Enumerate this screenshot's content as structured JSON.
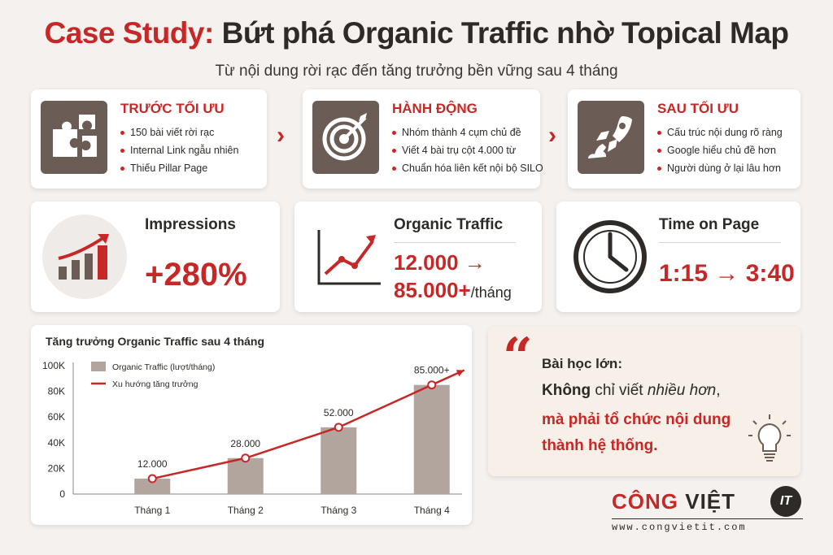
{
  "header": {
    "title_red": "Case Study:",
    "title_dark": "Bứt phá Organic Traffic nhờ Topical Map",
    "subtitle": "Từ nội dung rời rạc đến tăng trưởng bền vững sau 4 tháng"
  },
  "steps": [
    {
      "title": "TRƯỚC TỐI ƯU",
      "icon": "puzzle-icon",
      "items": [
        "150 bài viết rời rạc",
        "Internal Link ngẫu nhiên",
        "Thiếu Pillar Page"
      ]
    },
    {
      "title": "HÀNH ĐỘNG",
      "icon": "target-icon",
      "items": [
        "Nhóm thành 4 cụm chủ đề",
        "Viết 4 bài trụ cột 4.000 từ",
        "Chuẩn hóa liên kết nội bộ SILO"
      ]
    },
    {
      "title": "SAU TỐI ƯU",
      "icon": "rocket-icon",
      "items": [
        "Cấu trúc nội dung rõ ràng",
        "Google hiểu chủ đề hơn",
        "Người dùng ở lại lâu hơn"
      ]
    }
  ],
  "metrics": [
    {
      "label": "Impressions",
      "value": "+280%",
      "icon": "bar-growth-icon"
    },
    {
      "label": "Organic Traffic",
      "value_line1": "12.000 →",
      "value_line2": "85.000+",
      "suffix": "/tháng",
      "icon": "line-chart-icon"
    },
    {
      "label": "Time on Page",
      "value": "1:15 → 3:40",
      "icon": "clock-icon"
    }
  ],
  "chart_data": {
    "type": "bar",
    "title": "Tăng trưởng Organic Traffic sau 4 tháng",
    "categories": [
      "Tháng 1",
      "Tháng 2",
      "Tháng 3",
      "Tháng 4"
    ],
    "series": [
      {
        "name": "Organic Traffic (lượt/tháng)",
        "type": "bar",
        "values": [
          12000,
          28000,
          52000,
          85000
        ],
        "color": "#b1a59e"
      },
      {
        "name": "Xu hướng tăng trưởng",
        "type": "line",
        "values": [
          12000,
          28000,
          52000,
          85000
        ],
        "color": "#c62828"
      }
    ],
    "data_labels": [
      "12.000",
      "28.000",
      "52.000",
      "85.000+"
    ],
    "ylim": [
      0,
      100000
    ],
    "yticks": [
      0,
      20000,
      40000,
      60000,
      80000,
      100000
    ],
    "ytick_labels": [
      "0",
      "20K",
      "40K",
      "60K",
      "80K",
      "100K"
    ],
    "legend": "top-left",
    "grid": false
  },
  "quote": {
    "heading": "Bài học lớn:",
    "line2_bold": "Không",
    "line2_mid": " chỉ viết ",
    "line2_ital": "nhiều hơn",
    "line2_end": ",",
    "line3": "mà phải tổ chức nội dung",
    "line4": "thành hệ thống.",
    "icon": "lightbulb-icon"
  },
  "brand": {
    "name_red": "CÔNG",
    "name_dark": "VIỆT",
    "badge": "IT",
    "url": "www.congvietit.com"
  },
  "colors": {
    "accent": "#c62828",
    "icon_bg": "#6b5d55",
    "bar": "#b1a59e",
    "text": "#2e2a27"
  }
}
